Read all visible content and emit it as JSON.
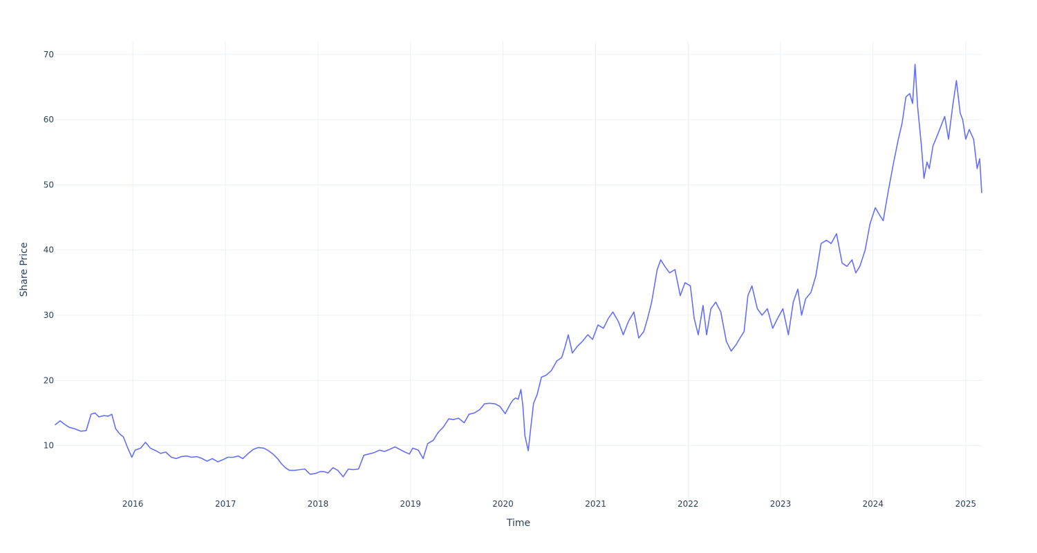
{
  "chart_data": {
    "type": "line",
    "title": "",
    "xlabel": "Time",
    "ylabel": "Share Price",
    "grid": true,
    "legend": "none",
    "xlim": [
      "2015-03-01",
      "2025-03-05"
    ],
    "ylim": [
      2,
      72
    ],
    "x_ticks": [
      "2016",
      "2017",
      "2018",
      "2019",
      "2020",
      "2021",
      "2022",
      "2023",
      "2024",
      "2025"
    ],
    "y_ticks": [
      10,
      20,
      30,
      40,
      50,
      60,
      70
    ],
    "line_color": "#636efa",
    "series": [
      {
        "x": [
          "2015-03-01",
          "2015-03-20",
          "2015-04-05",
          "2015-04-25",
          "2015-05-15",
          "2015-06-10",
          "2015-07-01",
          "2015-07-20",
          "2015-08-05",
          "2015-08-20",
          "2015-09-10",
          "2015-09-25",
          "2015-10-10",
          "2015-10-25",
          "2015-11-10",
          "2015-11-25",
          "2015-12-10",
          "2015-12-28",
          "2016-01-10",
          "2016-02-01",
          "2016-02-20",
          "2016-03-10",
          "2016-04-01",
          "2016-04-20",
          "2016-05-10",
          "2016-06-01",
          "2016-06-20",
          "2016-07-10",
          "2016-08-01",
          "2016-08-20",
          "2016-09-10",
          "2016-10-01",
          "2016-10-20",
          "2016-11-10",
          "2016-12-01",
          "2016-12-20",
          "2017-01-10",
          "2017-02-01",
          "2017-02-20",
          "2017-03-10",
          "2017-04-01",
          "2017-04-20",
          "2017-05-10",
          "2017-06-01",
          "2017-06-20",
          "2017-07-10",
          "2017-07-25",
          "2017-08-10",
          "2017-08-25",
          "2017-09-10",
          "2017-10-01",
          "2017-10-20",
          "2017-11-10",
          "2017-12-01",
          "2017-12-20",
          "2018-01-10",
          "2018-01-25",
          "2018-02-10",
          "2018-03-01",
          "2018-03-20",
          "2018-04-10",
          "2018-05-01",
          "2018-05-20",
          "2018-06-10",
          "2018-07-01",
          "2018-07-20",
          "2018-08-10",
          "2018-09-01",
          "2018-09-20",
          "2018-10-10",
          "2018-11-01",
          "2018-11-20",
          "2018-12-10",
          "2018-12-28",
          "2019-01-10",
          "2019-02-01",
          "2019-02-20",
          "2019-03-10",
          "2019-04-01",
          "2019-04-20",
          "2019-05-10",
          "2019-06-01",
          "2019-06-20",
          "2019-07-10",
          "2019-08-01",
          "2019-08-20",
          "2019-09-10",
          "2019-10-01",
          "2019-10-20",
          "2019-11-10",
          "2019-12-01",
          "2019-12-20",
          "2020-01-10",
          "2020-02-01",
          "2020-02-10",
          "2020-02-20",
          "2020-03-01",
          "2020-03-12",
          "2020-03-20",
          "2020-03-28",
          "2020-04-10",
          "2020-04-20",
          "2020-05-01",
          "2020-05-15",
          "2020-06-01",
          "2020-06-20",
          "2020-07-10",
          "2020-08-01",
          "2020-08-20",
          "2020-09-01",
          "2020-09-15",
          "2020-10-01",
          "2020-10-20",
          "2020-11-10",
          "2020-12-01",
          "2020-12-20",
          "2021-01-10",
          "2021-02-01",
          "2021-02-20",
          "2021-03-10",
          "2021-04-01",
          "2021-04-20",
          "2021-05-10",
          "2021-06-01",
          "2021-06-20",
          "2021-07-10",
          "2021-07-25",
          "2021-08-10",
          "2021-09-01",
          "2021-09-15",
          "2021-10-01",
          "2021-10-20",
          "2021-11-10",
          "2021-12-01",
          "2021-12-20",
          "2022-01-10",
          "2022-01-25",
          "2022-02-10",
          "2022-03-01",
          "2022-03-15",
          "2022-04-01",
          "2022-04-20",
          "2022-05-10",
          "2022-06-01",
          "2022-06-20",
          "2022-07-10",
          "2022-07-25",
          "2022-08-10",
          "2022-08-25",
          "2022-09-10",
          "2022-10-01",
          "2022-10-20",
          "2022-11-10",
          "2022-12-01",
          "2022-12-20",
          "2023-01-10",
          "2023-02-01",
          "2023-02-20",
          "2023-03-10",
          "2023-03-25",
          "2023-04-10",
          "2023-05-01",
          "2023-05-20",
          "2023-06-10",
          "2023-07-01",
          "2023-07-20",
          "2023-08-10",
          "2023-09-01",
          "2023-09-20",
          "2023-10-10",
          "2023-10-25",
          "2023-11-10",
          "2023-12-01",
          "2023-12-20",
          "2024-01-10",
          "2024-01-25",
          "2024-02-10",
          "2024-03-01",
          "2024-03-20",
          "2024-04-10",
          "2024-04-25",
          "2024-05-10",
          "2024-05-25",
          "2024-06-05",
          "2024-06-15",
          "2024-06-25",
          "2024-07-10",
          "2024-07-20",
          "2024-08-01",
          "2024-08-10",
          "2024-08-25",
          "2024-09-10",
          "2024-09-25",
          "2024-10-10",
          "2024-10-25",
          "2024-11-10",
          "2024-11-25",
          "2024-12-10",
          "2024-12-20",
          "2025-01-01",
          "2025-01-15",
          "2025-02-01",
          "2025-02-15",
          "2025-02-25",
          "2025-03-05"
        ],
        "y": [
          13.2,
          13.8,
          13.3,
          12.8,
          12.6,
          12.2,
          12.3,
          14.8,
          15.0,
          14.4,
          14.6,
          14.5,
          14.8,
          12.6,
          11.8,
          11.3,
          9.8,
          8.2,
          9.3,
          9.6,
          10.5,
          9.6,
          9.2,
          8.8,
          9.0,
          8.2,
          8.0,
          8.3,
          8.4,
          8.2,
          8.3,
          8.0,
          7.6,
          8.0,
          7.5,
          7.8,
          8.2,
          8.2,
          8.4,
          8.0,
          8.8,
          9.4,
          9.7,
          9.6,
          9.2,
          8.6,
          8.0,
          7.2,
          6.6,
          6.2,
          6.2,
          6.3,
          6.4,
          5.6,
          5.7,
          6.0,
          6.0,
          5.8,
          6.6,
          6.2,
          5.2,
          6.4,
          6.3,
          6.4,
          8.5,
          8.7,
          8.9,
          9.3,
          9.1,
          9.4,
          9.8,
          9.4,
          9.0,
          8.7,
          9.6,
          9.3,
          8.0,
          10.3,
          10.8,
          12.0,
          12.8,
          14.1,
          14.0,
          14.2,
          13.5,
          14.8,
          15.0,
          15.5,
          16.4,
          16.5,
          16.4,
          16.0,
          14.9,
          16.5,
          17.0,
          17.3,
          17.1,
          18.6,
          16.0,
          11.5,
          9.2,
          12.8,
          16.5,
          17.8,
          20.5,
          20.8,
          21.5,
          23.0,
          23.5,
          25.0,
          27.0,
          24.2,
          25.2,
          26.0,
          27.0,
          26.3,
          28.5,
          28.0,
          29.5,
          30.5,
          29.0,
          27.0,
          29.0,
          30.5,
          26.5,
          27.5,
          29.5,
          32.0,
          37.0,
          38.5,
          37.5,
          36.5,
          37.0,
          33.0,
          35.0,
          34.5,
          29.5,
          27.0,
          31.5,
          27.0,
          31.0,
          32.0,
          30.5,
          26.0,
          24.5,
          25.5,
          26.5,
          27.5,
          33.0,
          34.5,
          31.0,
          30.0,
          31.0,
          28.0,
          29.5,
          31.0,
          27.0,
          32.0,
          34.0,
          30.0,
          32.5,
          33.5,
          36.0,
          41.0,
          41.5,
          41.0,
          42.5,
          38.0,
          37.5,
          38.5,
          36.5,
          37.5,
          40.0,
          44.0,
          46.5,
          45.5,
          44.5,
          49.0,
          53.0,
          57.0,
          59.5,
          63.5,
          64.0,
          62.5,
          68.5,
          62.0,
          56.0,
          51.0,
          53.5,
          52.5,
          56.0,
          57.5,
          59.0,
          60.5,
          57.0,
          62.0,
          66.0,
          61.0,
          60.0,
          57.0,
          58.5,
          57.0,
          52.5,
          54.0,
          48.8
        ]
      }
    ]
  }
}
